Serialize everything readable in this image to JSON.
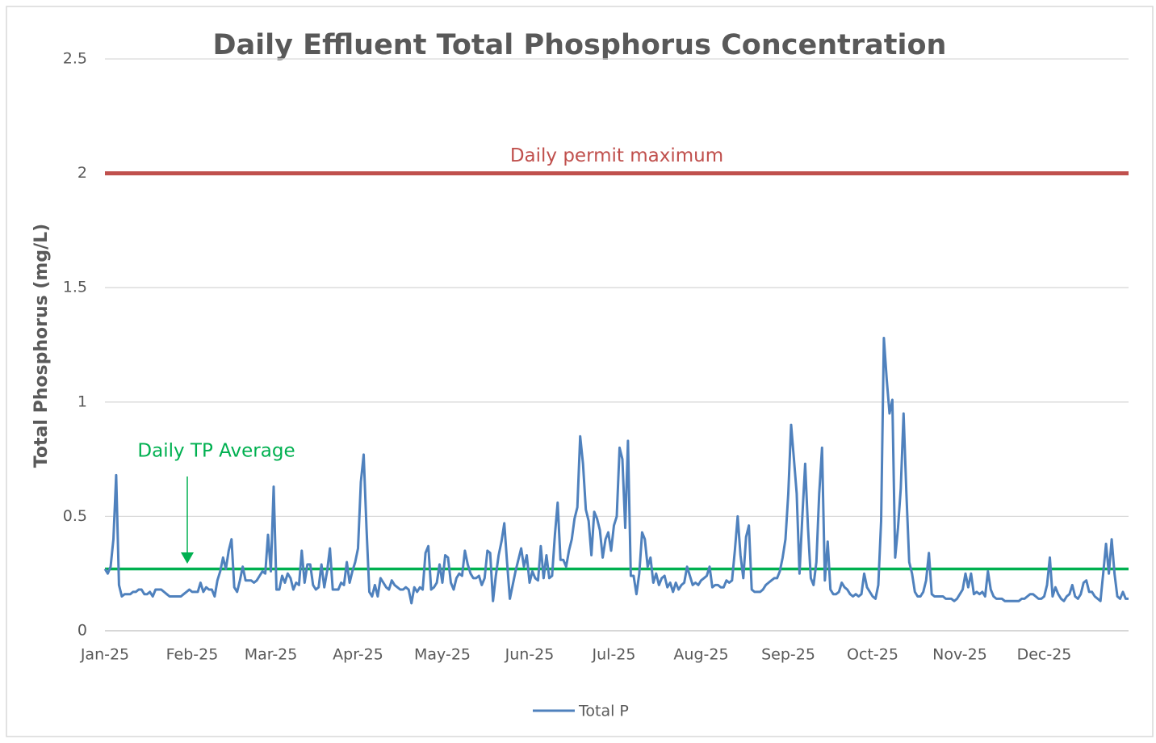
{
  "chart_data": {
    "type": "line",
    "title": "Daily Effluent Total Phosphorus Concentration",
    "y_label": "Total Phosphorus (mg/L)",
    "categories": [
      "Jan-25",
      null,
      null,
      null,
      null,
      null,
      null,
      null,
      null,
      null,
      null,
      null,
      null,
      null,
      null,
      null,
      null,
      null,
      null,
      null,
      null,
      null,
      null,
      null,
      null,
      null,
      null,
      null,
      null,
      null,
      null,
      "Feb-25",
      null,
      null,
      null,
      null,
      null,
      null,
      null,
      null,
      null,
      null,
      null,
      null,
      null,
      null,
      null,
      null,
      null,
      null,
      null,
      null,
      null,
      null,
      null,
      null,
      null,
      null,
      null,
      "Mar-25",
      null,
      null,
      null,
      null,
      null,
      null,
      null,
      null,
      null,
      null,
      null,
      null,
      null,
      null,
      null,
      null,
      null,
      null,
      null,
      null,
      null,
      null,
      null,
      null,
      null,
      null,
      null,
      null,
      null,
      null,
      "Apr-25",
      null,
      null,
      null,
      null,
      null,
      null,
      null,
      null,
      null,
      null,
      null,
      null,
      null,
      null,
      null,
      null,
      null,
      null,
      null,
      null,
      null,
      null,
      null,
      null,
      null,
      null,
      null,
      null,
      null,
      "May-25",
      null,
      null,
      null,
      null,
      null,
      null,
      null,
      null,
      null,
      null,
      null,
      null,
      null,
      null,
      null,
      null,
      null,
      null,
      null,
      null,
      null,
      null,
      null,
      null,
      null,
      null,
      null,
      null,
      null,
      null,
      "Jun-25",
      null,
      null,
      null,
      null,
      null,
      null,
      null,
      null,
      null,
      null,
      null,
      null,
      null,
      null,
      null,
      null,
      null,
      null,
      null,
      null,
      null,
      null,
      null,
      null,
      null,
      null,
      null,
      null,
      null,
      "Jul-25",
      null,
      null,
      null,
      null,
      null,
      null,
      null,
      null,
      null,
      null,
      null,
      null,
      null,
      null,
      null,
      null,
      null,
      null,
      null,
      null,
      null,
      null,
      null,
      null,
      null,
      null,
      null,
      null,
      null,
      null,
      "Aug-25",
      null,
      null,
      null,
      null,
      null,
      null,
      null,
      null,
      null,
      null,
      null,
      null,
      null,
      null,
      null,
      null,
      null,
      null,
      null,
      null,
      null,
      null,
      null,
      null,
      null,
      null,
      null,
      null,
      null,
      null,
      "Sep-25",
      null,
      null,
      null,
      null,
      null,
      null,
      null,
      null,
      null,
      null,
      null,
      null,
      null,
      null,
      null,
      null,
      null,
      null,
      null,
      null,
      null,
      null,
      null,
      null,
      null,
      null,
      null,
      null,
      null,
      "Oct-25",
      null,
      null,
      null,
      null,
      null,
      null,
      null,
      null,
      null,
      null,
      null,
      null,
      null,
      null,
      null,
      null,
      null,
      null,
      null,
      null,
      null,
      null,
      null,
      null,
      null,
      null,
      null,
      null,
      null,
      null,
      "Nov-25",
      null,
      null,
      null,
      null,
      null,
      null,
      null,
      null,
      null,
      null,
      null,
      null,
      null,
      null,
      null,
      null,
      null,
      null,
      null,
      null,
      null,
      null,
      null,
      null,
      null,
      null,
      null,
      null,
      null,
      "Dec-25",
      null,
      null,
      null,
      null,
      null,
      null,
      null,
      null,
      null,
      null,
      null,
      null,
      null,
      null,
      null,
      null,
      null,
      null,
      null,
      null,
      null,
      null,
      null,
      null,
      null,
      null,
      null,
      null,
      null,
      null
    ],
    "series": [
      {
        "name": "Total P",
        "color": "#4f81bd",
        "values": [
          0.27,
          0.25,
          0.28,
          0.4,
          0.68,
          0.2,
          0.15,
          0.16,
          0.16,
          0.16,
          0.17,
          0.17,
          0.18,
          0.18,
          0.16,
          0.16,
          0.17,
          0.15,
          0.18,
          0.18,
          0.18,
          0.17,
          0.16,
          0.15,
          0.15,
          0.15,
          0.15,
          0.15,
          0.16,
          0.17,
          0.18,
          0.17,
          0.17,
          0.17,
          0.21,
          0.17,
          0.19,
          0.18,
          0.18,
          0.15,
          0.22,
          0.26,
          0.32,
          0.27,
          0.35,
          0.4,
          0.19,
          0.17,
          0.22,
          0.28,
          0.22,
          0.22,
          0.22,
          0.21,
          0.22,
          0.24,
          0.26,
          0.25,
          0.42,
          0.26,
          0.63,
          0.18,
          0.18,
          0.24,
          0.21,
          0.25,
          0.23,
          0.18,
          0.21,
          0.2,
          0.35,
          0.21,
          0.29,
          0.29,
          0.2,
          0.18,
          0.19,
          0.29,
          0.19,
          0.26,
          0.36,
          0.18,
          0.18,
          0.18,
          0.21,
          0.2,
          0.3,
          0.21,
          0.26,
          0.3,
          0.36,
          0.65,
          0.77,
          0.45,
          0.17,
          0.15,
          0.2,
          0.15,
          0.23,
          0.21,
          0.19,
          0.18,
          0.22,
          0.2,
          0.19,
          0.18,
          0.18,
          0.19,
          0.18,
          0.12,
          0.19,
          0.17,
          0.19,
          0.18,
          0.34,
          0.37,
          0.18,
          0.19,
          0.21,
          0.29,
          0.21,
          0.33,
          0.32,
          0.21,
          0.18,
          0.23,
          0.25,
          0.24,
          0.35,
          0.29,
          0.25,
          0.23,
          0.23,
          0.24,
          0.2,
          0.23,
          0.35,
          0.34,
          0.13,
          0.24,
          0.33,
          0.39,
          0.47,
          0.3,
          0.14,
          0.2,
          0.26,
          0.31,
          0.36,
          0.28,
          0.33,
          0.21,
          0.26,
          0.23,
          0.22,
          0.37,
          0.23,
          0.33,
          0.23,
          0.24,
          0.42,
          0.56,
          0.31,
          0.31,
          0.28,
          0.35,
          0.4,
          0.49,
          0.54,
          0.85,
          0.73,
          0.53,
          0.48,
          0.33,
          0.52,
          0.49,
          0.44,
          0.32,
          0.4,
          0.43,
          0.35,
          0.46,
          0.5,
          0.8,
          0.75,
          0.45,
          0.83,
          0.24,
          0.24,
          0.16,
          0.25,
          0.43,
          0.4,
          0.28,
          0.32,
          0.21,
          0.25,
          0.2,
          0.23,
          0.24,
          0.19,
          0.21,
          0.17,
          0.21,
          0.18,
          0.2,
          0.21,
          0.28,
          0.24,
          0.2,
          0.21,
          0.2,
          0.22,
          0.23,
          0.24,
          0.28,
          0.19,
          0.2,
          0.2,
          0.19,
          0.19,
          0.22,
          0.21,
          0.22,
          0.35,
          0.5,
          0.33,
          0.23,
          0.41,
          0.46,
          0.18,
          0.17,
          0.17,
          0.17,
          0.18,
          0.2,
          0.21,
          0.22,
          0.23,
          0.23,
          0.26,
          0.32,
          0.4,
          0.6,
          0.9,
          0.75,
          0.6,
          0.25,
          0.5,
          0.73,
          0.45,
          0.23,
          0.2,
          0.3,
          0.6,
          0.8,
          0.22,
          0.39,
          0.18,
          0.16,
          0.16,
          0.17,
          0.21,
          0.19,
          0.18,
          0.16,
          0.15,
          0.16,
          0.15,
          0.16,
          0.25,
          0.19,
          0.17,
          0.15,
          0.14,
          0.2,
          0.48,
          1.28,
          1.1,
          0.95,
          1.01,
          0.32,
          0.45,
          0.62,
          0.95,
          0.6,
          0.3,
          0.25,
          0.17,
          0.15,
          0.15,
          0.17,
          0.22,
          0.34,
          0.16,
          0.15,
          0.15,
          0.15,
          0.15,
          0.14,
          0.14,
          0.14,
          0.13,
          0.14,
          0.16,
          0.18,
          0.25,
          0.19,
          0.25,
          0.16,
          0.17,
          0.16,
          0.17,
          0.15,
          0.26,
          0.18,
          0.15,
          0.14,
          0.14,
          0.14,
          0.13,
          0.13,
          0.13,
          0.13,
          0.13,
          0.13,
          0.14,
          0.14,
          0.15,
          0.16,
          0.16,
          0.15,
          0.14,
          0.14,
          0.15,
          0.2,
          0.32,
          0.15,
          0.19,
          0.16,
          0.14,
          0.13,
          0.15,
          0.16,
          0.2,
          0.15,
          0.14,
          0.16,
          0.21,
          0.22,
          0.17,
          0.17,
          0.15,
          0.14,
          0.13,
          0.25,
          0.38,
          0.25,
          0.4,
          0.25,
          0.15,
          0.14,
          0.17,
          0.14,
          0.14
        ]
      }
    ],
    "reference_lines": [
      {
        "label": "Daily permit maximum",
        "value": 2,
        "color": "#c0504d"
      },
      {
        "label": "Daily TP Average",
        "value": 0.27,
        "color": "#00b050"
      }
    ],
    "ylim": [
      0,
      2.5
    ],
    "yticks": [
      0,
      0.5,
      1,
      1.5,
      2,
      2.5
    ],
    "grid": true,
    "legend": "bottom"
  }
}
